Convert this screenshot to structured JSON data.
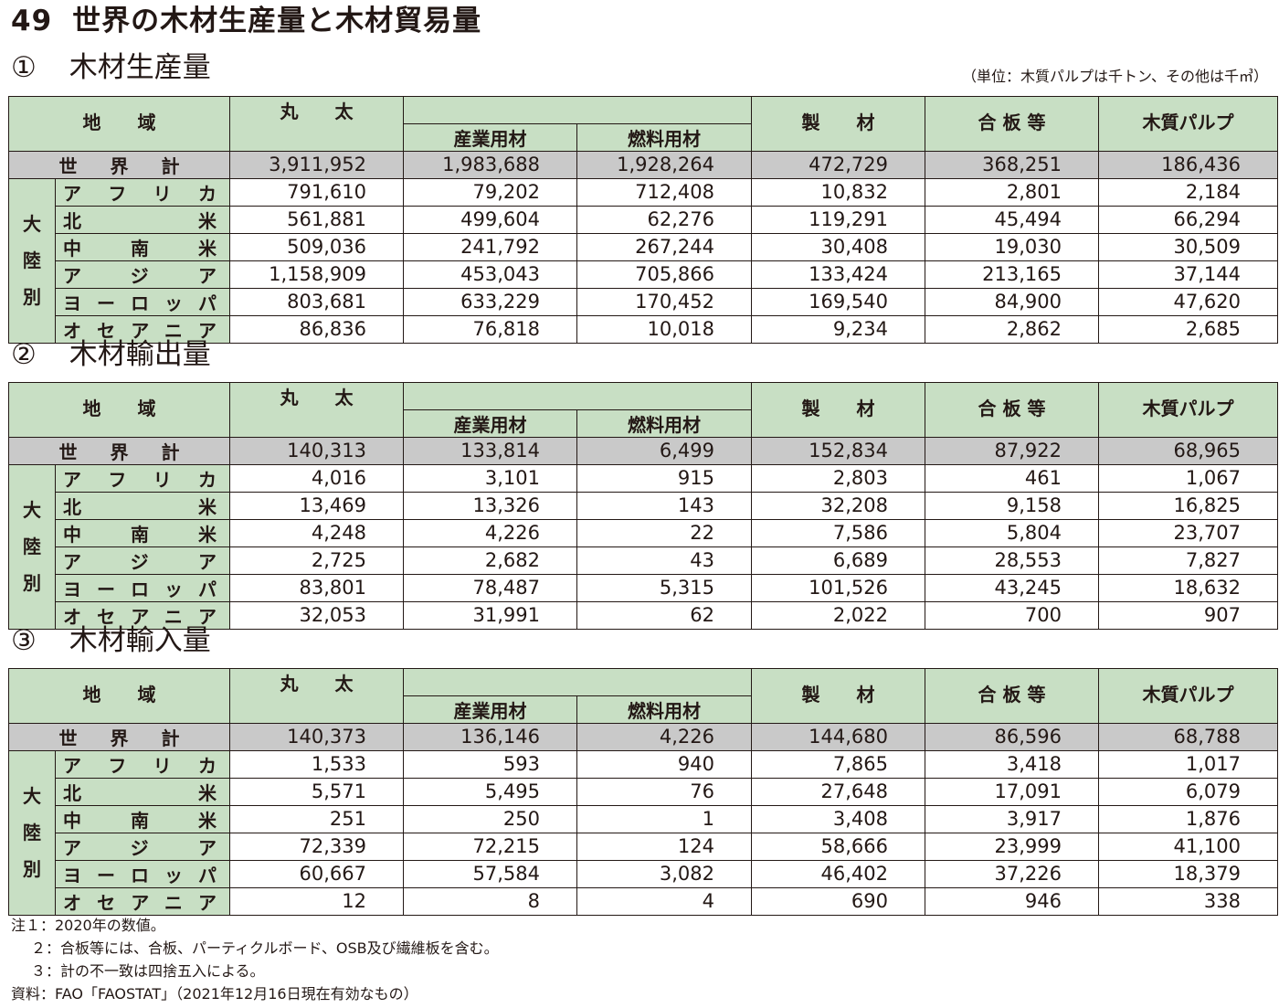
{
  "page_title": {
    "number": "49",
    "text": "世界の木材生産量と木材貿易量"
  },
  "unit_note": "（単位：木質パルプは千トン、その他は千㎥）",
  "headers": {
    "region": "地　　域",
    "logs": "丸　　太",
    "industrial": "産業用材",
    "fuel": "燃料用材",
    "sawn": "製　　材",
    "plywood": "合 板 等",
    "pulp": "木質パルプ",
    "world_total": [
      "世",
      "界",
      "計"
    ],
    "continent_side": [
      "大",
      "陸",
      "別"
    ]
  },
  "sections": [
    {
      "circle": "①",
      "title": "木材生産量",
      "world": [
        "3,911,952",
        "1,983,688",
        "1,928,264",
        "472,729",
        "368,251",
        "186,436"
      ],
      "rows": [
        {
          "region": "アフリカ",
          "values": [
            "791,610",
            "79,202",
            "712,408",
            "10,832",
            "2,801",
            "2,184"
          ]
        },
        {
          "region": "北米",
          "values": [
            "561,881",
            "499,604",
            "62,276",
            "119,291",
            "45,494",
            "66,294"
          ]
        },
        {
          "region": "中南米",
          "values": [
            "509,036",
            "241,792",
            "267,244",
            "30,408",
            "19,030",
            "30,509"
          ]
        },
        {
          "region": "アジア",
          "values": [
            "1,158,909",
            "453,043",
            "705,866",
            "133,424",
            "213,165",
            "37,144"
          ]
        },
        {
          "region": "ヨーロッパ",
          "values": [
            "803,681",
            "633,229",
            "170,452",
            "169,540",
            "84,900",
            "47,620"
          ]
        },
        {
          "region": "オセアニア",
          "values": [
            "86,836",
            "76,818",
            "10,018",
            "9,234",
            "2,862",
            "2,685"
          ]
        }
      ]
    },
    {
      "circle": "②",
      "title": "木材輸出量",
      "world": [
        "140,313",
        "133,814",
        "6,499",
        "152,834",
        "87,922",
        "68,965"
      ],
      "rows": [
        {
          "region": "アフリカ",
          "values": [
            "4,016",
            "3,101",
            "915",
            "2,803",
            "461",
            "1,067"
          ]
        },
        {
          "region": "北米",
          "values": [
            "13,469",
            "13,326",
            "143",
            "32,208",
            "9,158",
            "16,825"
          ]
        },
        {
          "region": "中南米",
          "values": [
            "4,248",
            "4,226",
            "22",
            "7,586",
            "5,804",
            "23,707"
          ]
        },
        {
          "region": "アジア",
          "values": [
            "2,725",
            "2,682",
            "43",
            "6,689",
            "28,553",
            "7,827"
          ]
        },
        {
          "region": "ヨーロッパ",
          "values": [
            "83,801",
            "78,487",
            "5,315",
            "101,526",
            "43,245",
            "18,632"
          ]
        },
        {
          "region": "オセアニア",
          "values": [
            "32,053",
            "31,991",
            "62",
            "2,022",
            "700",
            "907"
          ]
        }
      ]
    },
    {
      "circle": "③",
      "title": "木材輸入量",
      "world": [
        "140,373",
        "136,146",
        "4,226",
        "144,680",
        "86,596",
        "68,788"
      ],
      "rows": [
        {
          "region": "アフリカ",
          "values": [
            "1,533",
            "593",
            "940",
            "7,865",
            "3,418",
            "1,017"
          ]
        },
        {
          "region": "北米",
          "values": [
            "5,571",
            "5,495",
            "76",
            "27,648",
            "17,091",
            "6,079"
          ]
        },
        {
          "region": "中南米",
          "values": [
            "251",
            "250",
            "1",
            "3,408",
            "3,917",
            "1,876"
          ]
        },
        {
          "region": "アジア",
          "values": [
            "72,339",
            "72,215",
            "124",
            "58,666",
            "23,999",
            "41,100"
          ]
        },
        {
          "region": "ヨーロッパ",
          "values": [
            "60,667",
            "57,584",
            "3,082",
            "46,402",
            "37,226",
            "18,379"
          ]
        },
        {
          "region": "オセアニア",
          "values": [
            "12",
            "8",
            "4",
            "690",
            "946",
            "338"
          ]
        }
      ]
    }
  ],
  "notes": [
    "注１：2020年の数値。",
    "２：合板等には、合板、パーティクルボード、OSB及び繊維板を含む。",
    "３：計の不一致は四捨五入による。",
    "資料：FAO「FAOSTAT」（2021年12月16日現在有効なもの）"
  ]
}
